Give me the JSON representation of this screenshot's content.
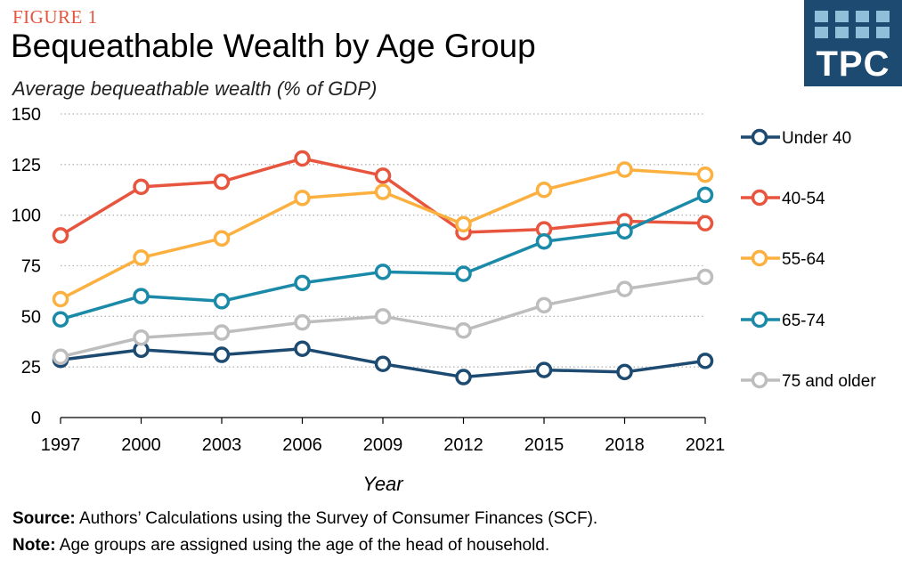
{
  "figure_label": "FIGURE 1",
  "title": "Bequeathable Wealth by Age Group",
  "subtitle": "Average bequeathable wealth (% of GDP)",
  "logo": {
    "text": "TPC",
    "bg": "#1d4a70",
    "square_color": "#8fbfd9"
  },
  "footer": {
    "source_label": "Source:",
    "source_text": " Authors’ Calculations using the Survey of Consumer Finances (SCF).",
    "note_label": "Note:",
    "note_text": " Age groups are assigned using the age of the head of household."
  },
  "chart_data": {
    "type": "line",
    "title": "Bequeathable Wealth by Age Group",
    "xlabel": "Year",
    "ylabel": "Average bequeathable wealth (% of GDP)",
    "categories": [
      "1997",
      "2000",
      "2003",
      "2006",
      "2009",
      "2012",
      "2015",
      "2018",
      "2021"
    ],
    "ylim": [
      0,
      150
    ],
    "yticks": [
      0,
      25,
      50,
      75,
      100,
      125,
      150
    ],
    "grid": "horizontal dotted",
    "legend_position": "right",
    "series": [
      {
        "name": "Under 40",
        "color": "#1d4a70",
        "values": [
          28.5,
          33.5,
          31,
          34,
          26.5,
          20,
          23.5,
          22.5,
          28
        ]
      },
      {
        "name": "40-54",
        "color": "#e8553e",
        "values": [
          90,
          114,
          116.5,
          128,
          119.5,
          91.5,
          93,
          97,
          96
        ]
      },
      {
        "name": "55-64",
        "color": "#fbb040",
        "values": [
          58.5,
          79,
          88.5,
          108.5,
          111.5,
          95.5,
          112.5,
          122.5,
          120
        ]
      },
      {
        "name": "65-74",
        "color": "#1a8aa8",
        "values": [
          48.5,
          60,
          57.5,
          66.5,
          72,
          71,
          87,
          92,
          110
        ]
      },
      {
        "name": "75 and older",
        "color": "#bdbdbd",
        "values": [
          30,
          39.5,
          42,
          47,
          50,
          43,
          55.5,
          63.5,
          69.5
        ]
      }
    ]
  }
}
